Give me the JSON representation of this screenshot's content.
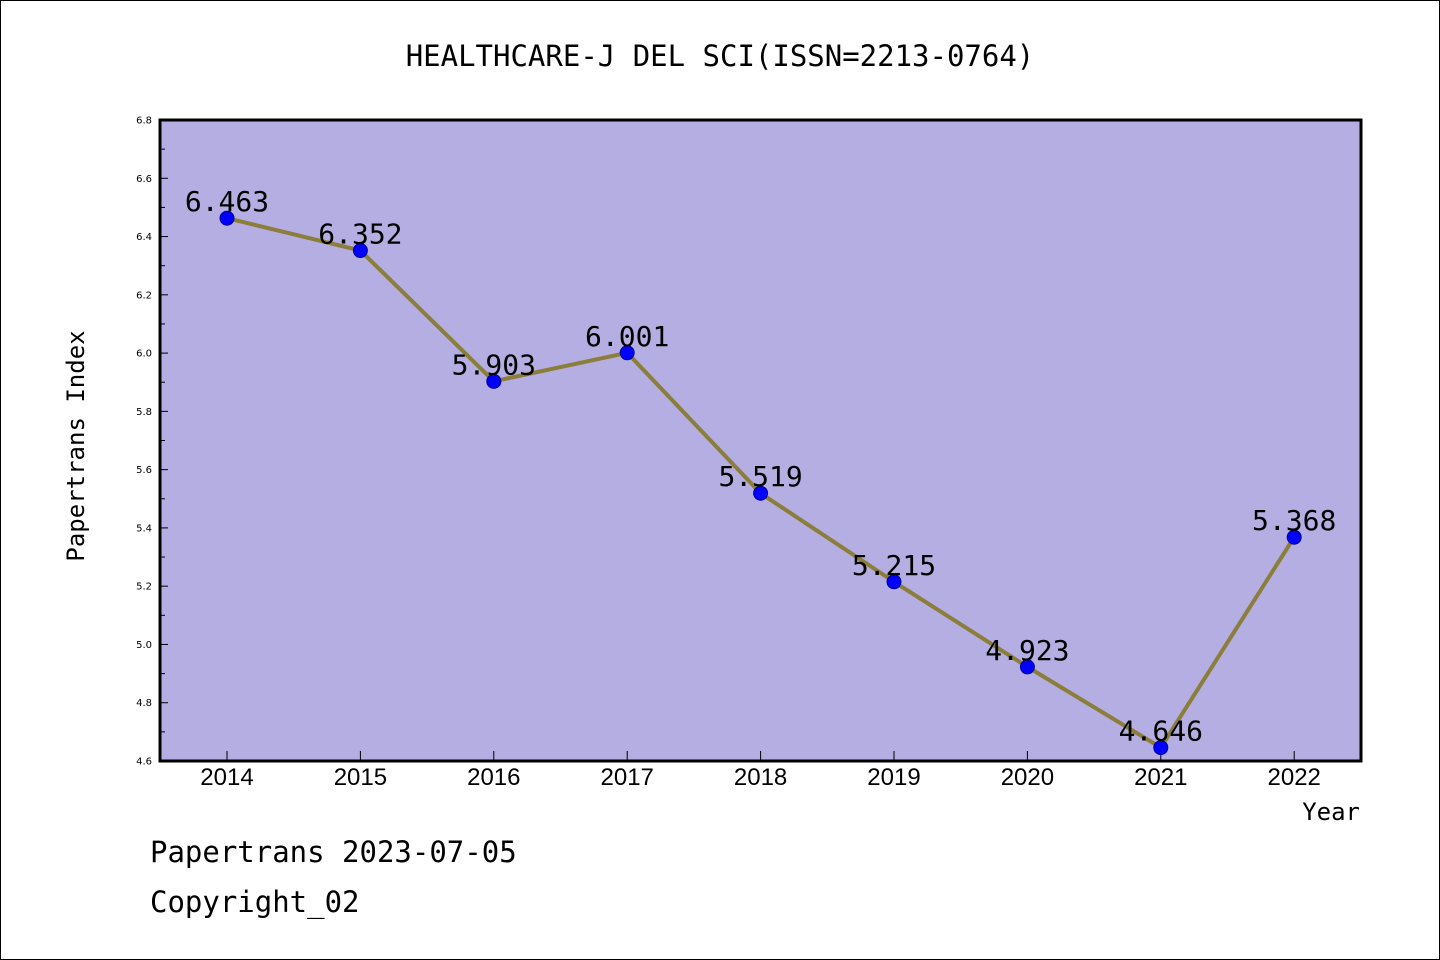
{
  "chart_data": {
    "type": "line",
    "title": "HEALTHCARE-J DEL SCI(ISSN=2213-0764)",
    "xlabel": "Year",
    "ylabel": "Papertrans Index",
    "categories": [
      "2014",
      "2015",
      "2016",
      "2017",
      "2018",
      "2019",
      "2020",
      "2021",
      "2022"
    ],
    "series": [
      {
        "values": [
          6.463,
          6.352,
          5.903,
          6.001,
          5.519,
          5.215,
          4.923,
          4.646,
          5.368
        ]
      }
    ],
    "data_labels": [
      "6.463",
      "6.352",
      "5.903",
      "6.001",
      "5.519",
      "5.215",
      "4.923",
      "4.646",
      "5.368"
    ],
    "ylim": [
      4.6,
      6.8
    ],
    "yticks": [
      "4.6",
      "4.8",
      "5.0",
      "5.2",
      "5.4",
      "5.6",
      "5.8",
      "6.0",
      "6.2",
      "6.4",
      "6.6",
      "6.8"
    ],
    "grid": false,
    "legend": "none",
    "colors": {
      "plot_background": "#b5aee2",
      "line": "#8b7d3a",
      "marker": "#0000ff",
      "axis": "#000000"
    }
  },
  "footer": {
    "line1": "Papertrans 2023-07-05",
    "line2": "Copyright_02"
  }
}
